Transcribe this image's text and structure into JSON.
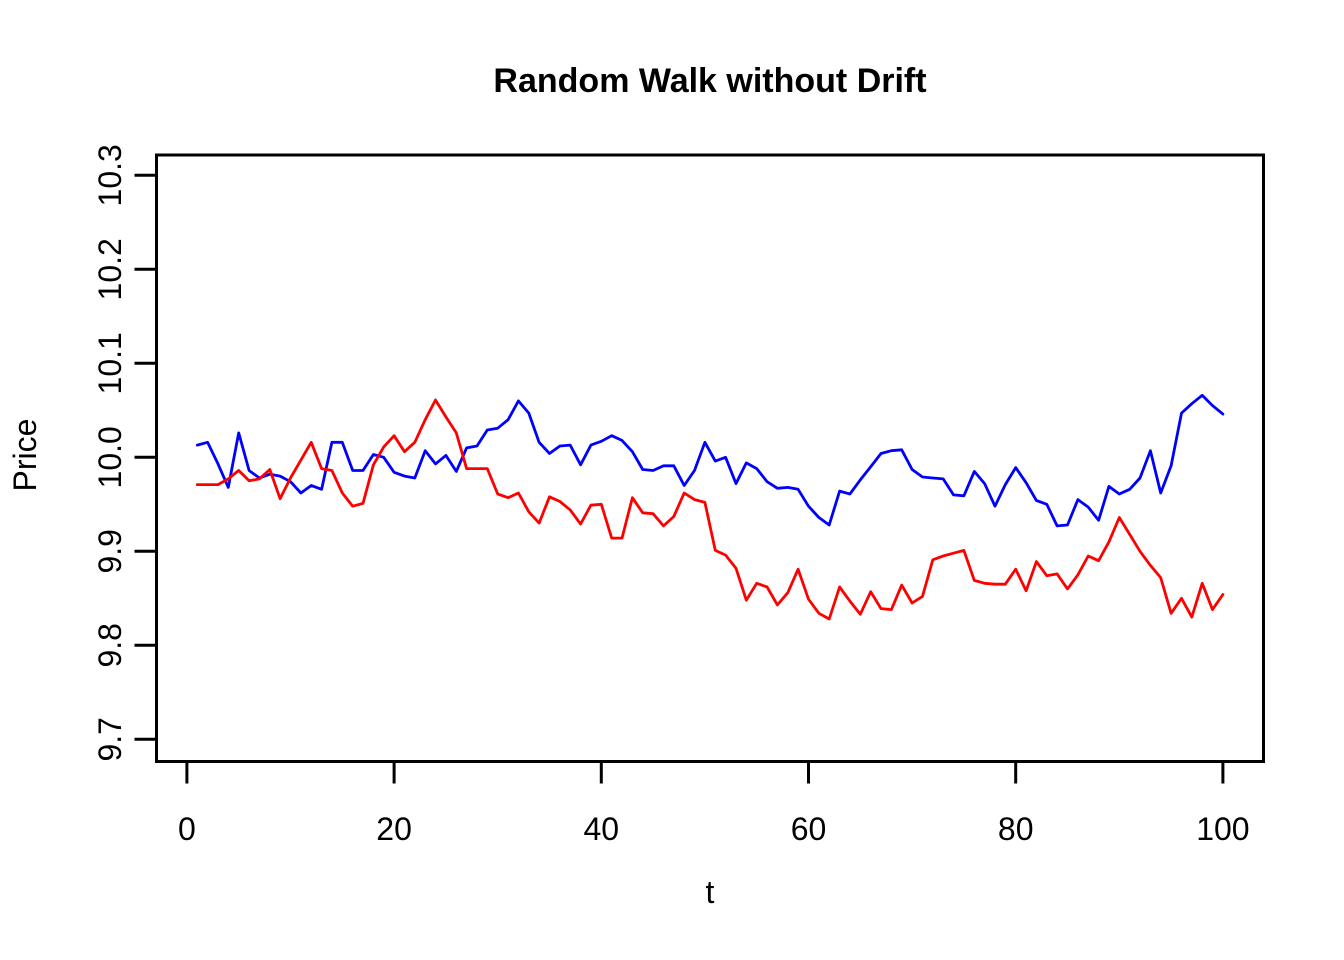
{
  "chart": {
    "title": "Random Walk without Drift",
    "xlabel": "t",
    "ylabel": "Price"
  },
  "chart_data": {
    "type": "line",
    "title": "Random Walk without Drift",
    "xlabel": "t",
    "ylabel": "Price",
    "xlim": [
      0,
      100
    ],
    "ylim": [
      9.7,
      10.3
    ],
    "x_ticks": [
      0,
      20,
      40,
      60,
      80,
      100
    ],
    "y_ticks": [
      9.7,
      9.8,
      9.9,
      10.0,
      10.1,
      10.2,
      10.3
    ],
    "grid": false,
    "legend_position": "none",
    "background": "#ffffff",
    "axis_color": "#000000",
    "x": [
      1,
      2,
      3,
      4,
      5,
      6,
      7,
      8,
      9,
      10,
      11,
      12,
      13,
      14,
      15,
      16,
      17,
      18,
      19,
      20,
      21,
      22,
      23,
      24,
      25,
      26,
      27,
      28,
      29,
      30,
      31,
      32,
      33,
      34,
      35,
      36,
      37,
      38,
      39,
      40,
      41,
      42,
      43,
      44,
      45,
      46,
      47,
      48,
      49,
      50,
      51,
      52,
      53,
      54,
      55,
      56,
      57,
      58,
      59,
      60,
      61,
      62,
      63,
      64,
      65,
      66,
      67,
      68,
      69,
      70,
      71,
      72,
      73,
      74,
      75,
      76,
      77,
      78,
      79,
      80,
      81,
      82,
      83,
      84,
      85,
      86,
      87,
      88,
      89,
      90,
      91,
      92,
      93,
      94,
      95,
      96,
      97,
      98,
      99,
      100
    ],
    "series": [
      {
        "name": "random-walk-blue",
        "color": "#0000FF",
        "values": [
          10.013,
          10.016,
          9.993,
          9.968,
          10.026,
          9.986,
          9.978,
          9.982,
          9.98,
          9.974,
          9.962,
          9.97,
          9.966,
          10.016,
          10.016,
          9.986,
          9.986,
          10.003,
          10.0,
          9.984,
          9.98,
          9.978,
          10.007,
          9.993,
          10.002,
          9.985,
          10.01,
          10.012,
          10.029,
          10.031,
          10.04,
          10.06,
          10.047,
          10.016,
          10.004,
          10.012,
          10.013,
          9.992,
          10.013,
          10.017,
          10.023,
          10.018,
          10.006,
          9.987,
          9.986,
          9.991,
          9.991,
          9.97,
          9.986,
          10.016,
          9.996,
          10.0,
          9.972,
          9.994,
          9.988,
          9.974,
          9.967,
          9.968,
          9.966,
          9.948,
          9.936,
          9.928,
          9.964,
          9.961,
          9.976,
          9.99,
          10.004,
          10.007,
          10.008,
          9.987,
          9.979,
          9.978,
          9.977,
          9.96,
          9.959,
          9.985,
          9.972,
          9.948,
          9.971,
          9.989,
          9.973,
          9.954,
          9.95,
          9.927,
          9.928,
          9.955,
          9.947,
          9.933,
          9.969,
          9.961,
          9.966,
          9.978,
          10.007,
          9.962,
          9.991,
          10.047,
          10.057,
          10.066,
          10.055,
          10.046
        ]
      },
      {
        "name": "random-walk-red",
        "color": "#FF0000",
        "values": [
          9.971,
          9.971,
          9.971,
          9.977,
          9.986,
          9.975,
          9.977,
          9.987,
          9.956,
          9.978,
          9.997,
          10.016,
          9.988,
          9.986,
          9.962,
          9.948,
          9.951,
          9.992,
          10.011,
          10.023,
          10.006,
          10.016,
          10.04,
          10.061,
          10.043,
          10.026,
          9.988,
          9.988,
          9.988,
          9.961,
          9.957,
          9.962,
          9.942,
          9.93,
          9.958,
          9.953,
          9.944,
          9.929,
          9.949,
          9.95,
          9.914,
          9.914,
          9.957,
          9.941,
          9.94,
          9.927,
          9.937,
          9.962,
          9.955,
          9.952,
          9.901,
          9.896,
          9.882,
          9.848,
          9.866,
          9.862,
          9.843,
          9.856,
          9.881,
          9.849,
          9.834,
          9.828,
          9.862,
          9.847,
          9.833,
          9.857,
          9.839,
          9.838,
          9.864,
          9.845,
          9.852,
          9.891,
          9.895,
          9.898,
          9.901,
          9.869,
          9.866,
          9.865,
          9.865,
          9.881,
          9.858,
          9.889,
          9.874,
          9.876,
          9.86,
          9.875,
          9.895,
          9.89,
          9.91,
          9.936,
          9.918,
          9.9,
          9.885,
          9.872,
          9.834,
          9.85,
          9.83,
          9.866,
          9.838,
          9.854
        ]
      }
    ]
  }
}
